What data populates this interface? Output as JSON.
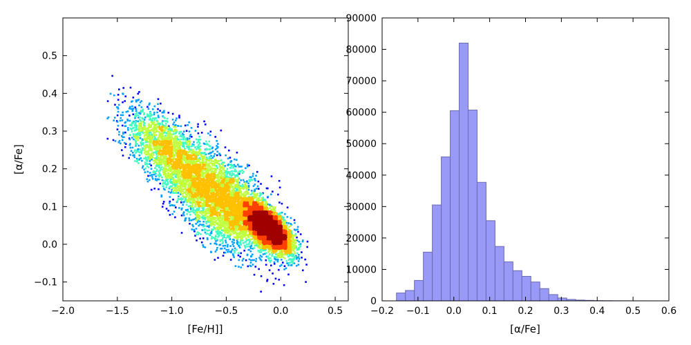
{
  "chart_data": [
    {
      "type": "scatter",
      "style": "density-colored scatter (jet colormap: blue = sparse, red = dense)",
      "xlabel": "[Fe/H]]",
      "ylabel": "[α/Fe]",
      "xlim": [
        -2.0,
        0.62
      ],
      "ylim": [
        -0.15,
        0.6
      ],
      "xticks": [
        "−2.0",
        "−1.5",
        "−1.0",
        "−0.5",
        "0.0",
        "0.5"
      ],
      "xtick_values": [
        -2.0,
        -1.5,
        -1.0,
        -0.5,
        0.0,
        0.5
      ],
      "yticks": [
        "−0.1",
        "0.0",
        "0.1",
        "0.2",
        "0.3",
        "0.4",
        "0.5"
      ],
      "ytick_values": [
        -0.1,
        0.0,
        0.1,
        0.2,
        0.3,
        0.4,
        0.5
      ],
      "density_peak": {
        "x": -0.1,
        "y": 0.04
      },
      "distribution_components": [
        {
          "center_x": -0.12,
          "center_y": 0.045,
          "spread_x": 0.16,
          "spread_y": 0.035
        },
        {
          "center_x": -0.55,
          "center_y": 0.12,
          "spread_x": 0.35,
          "spread_y": 0.08
        },
        {
          "center_x": -1.05,
          "center_y": 0.25,
          "spread_x": 0.28,
          "spread_y": 0.06
        }
      ],
      "colormap": [
        "#00008f",
        "#0000ff",
        "#00a0ff",
        "#40ffc0",
        "#c0ff40",
        "#ffc000",
        "#ff4000",
        "#a00000"
      ]
    },
    {
      "type": "bar",
      "style": "histogram",
      "xlabel": "[α/Fe]",
      "ylabel": "",
      "xlim": [
        -0.2,
        0.6
      ],
      "ylim": [
        0,
        90000
      ],
      "xticks": [
        "−0.2",
        "−0.1",
        "0.0",
        "0.1",
        "0.2",
        "0.3",
        "0.4",
        "0.5",
        "0.6"
      ],
      "xtick_values": [
        -0.2,
        -0.1,
        0.0,
        0.1,
        0.2,
        0.3,
        0.4,
        0.5,
        0.6
      ],
      "yticks": [
        "0",
        "10000",
        "20000",
        "30000",
        "40000",
        "50000",
        "60000",
        "70000",
        "80000",
        "90000"
      ],
      "ytick_values": [
        0,
        10000,
        20000,
        30000,
        40000,
        50000,
        60000,
        70000,
        80000,
        90000
      ],
      "bar_color": "#9999f7",
      "bar_edge_color": "#6a6ab0",
      "bins": [
        {
          "x0": -0.16,
          "x1": -0.135,
          "count": 2500
        },
        {
          "x0": -0.135,
          "x1": -0.11,
          "count": 3300
        },
        {
          "x0": -0.11,
          "x1": -0.085,
          "count": 6500
        },
        {
          "x0": -0.085,
          "x1": -0.06,
          "count": 15500
        },
        {
          "x0": -0.06,
          "x1": -0.035,
          "count": 30500
        },
        {
          "x0": -0.035,
          "x1": -0.01,
          "count": 45800
        },
        {
          "x0": -0.01,
          "x1": 0.015,
          "count": 60500
        },
        {
          "x0": 0.015,
          "x1": 0.04,
          "count": 82000
        },
        {
          "x0": 0.04,
          "x1": 0.065,
          "count": 60700
        },
        {
          "x0": 0.065,
          "x1": 0.09,
          "count": 37700
        },
        {
          "x0": 0.09,
          "x1": 0.115,
          "count": 25500
        },
        {
          "x0": 0.115,
          "x1": 0.14,
          "count": 17300
        },
        {
          "x0": 0.14,
          "x1": 0.165,
          "count": 12400
        },
        {
          "x0": 0.165,
          "x1": 0.19,
          "count": 9600
        },
        {
          "x0": 0.19,
          "x1": 0.215,
          "count": 7800
        },
        {
          "x0": 0.215,
          "x1": 0.24,
          "count": 6000
        },
        {
          "x0": 0.24,
          "x1": 0.265,
          "count": 3900
        },
        {
          "x0": 0.265,
          "x1": 0.29,
          "count": 2000
        },
        {
          "x0": 0.29,
          "x1": 0.315,
          "count": 900
        },
        {
          "x0": 0.315,
          "x1": 0.34,
          "count": 450
        },
        {
          "x0": 0.34,
          "x1": 0.365,
          "count": 250
        },
        {
          "x0": 0.365,
          "x1": 0.39,
          "count": 150
        },
        {
          "x0": 0.39,
          "x1": 0.415,
          "count": 80
        },
        {
          "x0": 0.415,
          "x1": 0.44,
          "count": 50
        },
        {
          "x0": 0.44,
          "x1": 0.465,
          "count": 30
        },
        {
          "x0": 0.465,
          "x1": 0.49,
          "count": 20
        },
        {
          "x0": 0.49,
          "x1": 0.515,
          "count": 10
        },
        {
          "x0": 0.515,
          "x1": 0.54,
          "count": 10
        },
        {
          "x0": 0.54,
          "x1": 0.565,
          "count": 5
        }
      ]
    }
  ]
}
